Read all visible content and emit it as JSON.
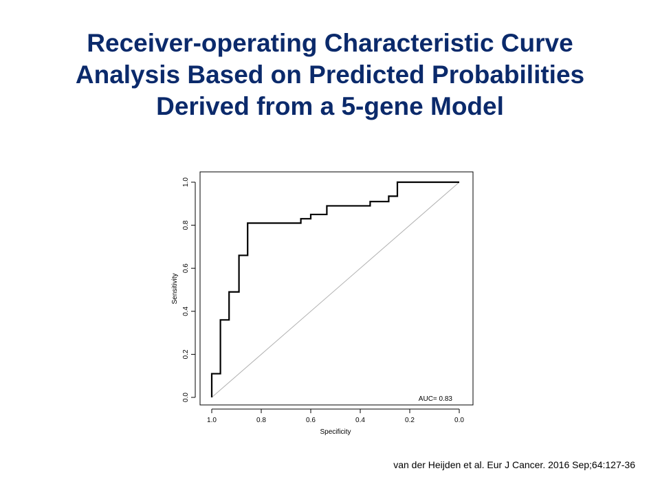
{
  "slide": {
    "title_lines": [
      "Receiver-operating Characteristic Curve",
      "Analysis Based on Predicted Probabilities",
      "Derived from a 5-gene Model"
    ],
    "citation": "van der Heijden et al. Eur J Cancer. 2016 Sep;64:127-36"
  },
  "chart_data": {
    "type": "line",
    "xlabel": "Specificity",
    "ylabel": "Sensitivity",
    "xlim": [
      1.0,
      0.0
    ],
    "ylim": [
      0.0,
      1.0
    ],
    "x_reversed": true,
    "x_ticks": [
      "1.0",
      "0.8",
      "0.6",
      "0.4",
      "0.2",
      "0.0"
    ],
    "y_ticks": [
      "0.0",
      "0.2",
      "0.4",
      "0.6",
      "0.8",
      "1.0"
    ],
    "grid": false,
    "annotation": "AUC= 0.83",
    "auc": 0.83,
    "series": [
      {
        "x": [
          1.0,
          1.0,
          0.965,
          0.965,
          0.93,
          0.93,
          0.89,
          0.89,
          0.855,
          0.855,
          0.64,
          0.64,
          0.6,
          0.6,
          0.535,
          0.535,
          0.36,
          0.36,
          0.285,
          0.285,
          0.25,
          0.25,
          0.0
        ],
        "y": [
          0.0,
          0.11,
          0.11,
          0.36,
          0.36,
          0.49,
          0.49,
          0.66,
          0.66,
          0.81,
          0.81,
          0.83,
          0.83,
          0.85,
          0.85,
          0.89,
          0.89,
          0.91,
          0.91,
          0.935,
          0.935,
          1.0,
          1.0
        ]
      },
      {
        "x": [
          1.0,
          0.0
        ],
        "y": [
          0.0,
          1.0
        ]
      }
    ],
    "colors": {
      "roc": "#000000",
      "diagonal": "#b0b0b0"
    }
  }
}
